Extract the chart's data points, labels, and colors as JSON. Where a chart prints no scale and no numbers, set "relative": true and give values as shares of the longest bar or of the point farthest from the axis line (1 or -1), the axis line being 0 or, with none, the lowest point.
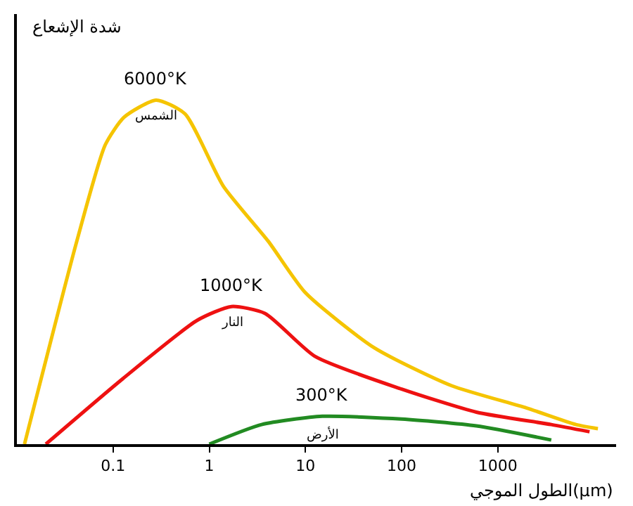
{
  "chart_data": {
    "type": "line",
    "relative": true,
    "log": "x",
    "xlabel": "الطول الموجي(μm)",
    "ylabel": "شدة الإشعاع",
    "xlim": [
      0.01,
      17000
    ],
    "xticks": [
      0.1,
      1,
      10,
      100,
      1000
    ],
    "legend": false,
    "marker": "none",
    "line_style": "solid",
    "series": [
      {
        "name": "6000°K",
        "color": "#f5c400",
        "x": [
          0.012,
          0.042,
          0.083,
          0.13,
          0.28,
          0.56,
          1.4,
          4.1,
          10,
          52,
          330,
          2000,
          6500,
          11000
        ],
        "values": [
          0,
          0.59,
          0.87,
          0.95,
          1,
          0.96,
          0.75,
          0.59,
          0.44,
          0.28,
          0.17,
          0.105,
          0.057,
          0.045
        ]
      },
      {
        "name": "1000°K",
        "color": "#ee1111",
        "x": [
          0.02,
          0.126,
          0.75,
          1.7,
          3.8,
          12.6,
          100,
          600,
          3600,
          9000
        ],
        "values": [
          0,
          0.19,
          0.36,
          0.4,
          0.38,
          0.255,
          0.16,
          0.093,
          0.057,
          0.036
        ]
      },
      {
        "name": "300°K",
        "color": "#228b22",
        "x": [
          1,
          3.5,
          15,
          100,
          600,
          3600
        ],
        "values": [
          0,
          0.057,
          0.081,
          0.073,
          0.053,
          0.012
        ]
      }
    ],
    "annotations": [
      "الشمس",
      "النار",
      "الأرض"
    ]
  }
}
